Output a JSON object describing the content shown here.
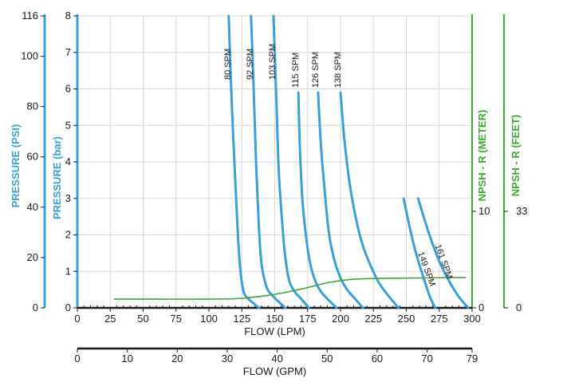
{
  "chart_data": {
    "type": "line",
    "title": "",
    "colors": {
      "pressure_axis": "#3aa0d8",
      "pump_curve": "#3aa0d8",
      "npsh": "#3ea832",
      "axis_dark": "#1a1a1a",
      "grid": "#d9d9d9"
    },
    "axes": {
      "x_lpm": {
        "label": "FLOW (LPM)",
        "range": [
          0,
          300
        ],
        "ticks": [
          0,
          25,
          50,
          75,
          100,
          125,
          150,
          175,
          200,
          225,
          250,
          275,
          300
        ],
        "tick_labels": [
          "0",
          "25",
          "50",
          "75",
          "100",
          "125",
          "150",
          "175",
          "200",
          "225",
          "250",
          "275",
          "300"
        ]
      },
      "x_gpm": {
        "label": "FLOW (GPM)",
        "range": [
          0,
          79
        ],
        "ticks": [
          0,
          10,
          20,
          30,
          40,
          50,
          60,
          70,
          79
        ],
        "tick_labels": [
          "0",
          "10",
          "20",
          "30",
          "40",
          "50",
          "60",
          "70",
          "79"
        ]
      },
      "y_bar": {
        "label": "PRESSURE (bar)",
        "range": [
          0,
          8
        ],
        "ticks": [
          0,
          1,
          2,
          3,
          4,
          5,
          6,
          7,
          8
        ],
        "tick_labels": [
          "0",
          "1",
          "2",
          "3",
          "4",
          "5",
          "6",
          "7",
          "8"
        ]
      },
      "y_psi": {
        "label": "PRESSURE (PSI)",
        "range": [
          0,
          116
        ],
        "ticks": [
          0,
          20,
          40,
          60,
          80,
          100,
          116
        ],
        "tick_labels": [
          "0",
          "20",
          "40",
          "60",
          "80",
          "100",
          "116"
        ]
      },
      "y_npsh_meter": {
        "label": "NPSH - R (METER)",
        "range": [
          0,
          10
        ],
        "ticks": [
          0,
          10
        ],
        "tick_labels": [
          "0",
          "10"
        ]
      },
      "y_npsh_feet": {
        "label": "NPSH - R (FEET)",
        "range": [
          0,
          33
        ],
        "ticks": [
          0,
          33
        ],
        "tick_labels": [
          "0",
          "33"
        ]
      }
    },
    "grid": true,
    "series": [
      {
        "name": "80 SPM",
        "axis": "bar",
        "x": [
          115,
          117,
          120,
          122,
          124,
          126,
          128,
          133,
          138
        ],
        "y": [
          8,
          5.9,
          3.5,
          2.0,
          1.0,
          0.5,
          0.32,
          0.15,
          0.0
        ]
      },
      {
        "name": "92 SPM",
        "axis": "bar",
        "x": [
          132,
          134,
          136,
          138,
          140,
          144,
          148,
          152,
          158
        ],
        "y": [
          8,
          6.0,
          3.8,
          2.2,
          1.2,
          0.55,
          0.35,
          0.2,
          0.0
        ]
      },
      {
        "name": "103 SPM",
        "axis": "bar",
        "x": [
          149,
          151,
          153,
          156,
          158,
          161,
          165,
          170,
          176
        ],
        "y": [
          8,
          6.0,
          3.8,
          2.2,
          1.4,
          0.75,
          0.45,
          0.25,
          0.0
        ]
      },
      {
        "name": "115 SPM",
        "axis": "bar",
        "x": [
          168,
          169,
          171,
          174,
          177,
          181,
          185,
          190,
          197
        ],
        "y": [
          5.9,
          4.5,
          3.0,
          1.9,
          1.2,
          0.72,
          0.45,
          0.25,
          0.0
        ]
      },
      {
        "name": "126 SPM",
        "axis": "bar",
        "x": [
          183,
          185,
          188,
          191,
          195,
          200,
          205,
          211,
          217
        ],
        "y": [
          5.9,
          4.5,
          3.2,
          2.1,
          1.35,
          0.82,
          0.5,
          0.25,
          0.0
        ]
      },
      {
        "name": "138 SPM",
        "axis": "bar",
        "x": [
          200,
          203,
          207,
          212,
          217,
          223,
          229,
          236,
          244
        ],
        "y": [
          5.9,
          4.6,
          3.4,
          2.4,
          1.7,
          1.15,
          0.7,
          0.35,
          0.0
        ]
      },
      {
        "name": "149 SPM",
        "axis": "bar",
        "x": [
          248,
          252,
          257,
          262,
          268,
          272
        ],
        "y": [
          3.0,
          2.3,
          1.55,
          0.95,
          0.3,
          0.0
        ]
      },
      {
        "name": "161 SPM",
        "axis": "bar",
        "x": [
          259,
          264,
          270,
          276,
          283,
          290,
          297
        ],
        "y": [
          3.0,
          2.4,
          1.75,
          1.2,
          0.7,
          0.3,
          0.0
        ]
      },
      {
        "name": "NPSH-R",
        "axis": "npsh_meter",
        "x": [
          28,
          60,
          100,
          120,
          130,
          145,
          160,
          175,
          190,
          205,
          215,
          230,
          260,
          295
        ],
        "y": [
          0.9,
          0.9,
          0.9,
          0.95,
          1.05,
          1.3,
          1.65,
          2.1,
          2.6,
          2.9,
          3.0,
          3.05,
          3.1,
          3.15
        ]
      }
    ]
  }
}
